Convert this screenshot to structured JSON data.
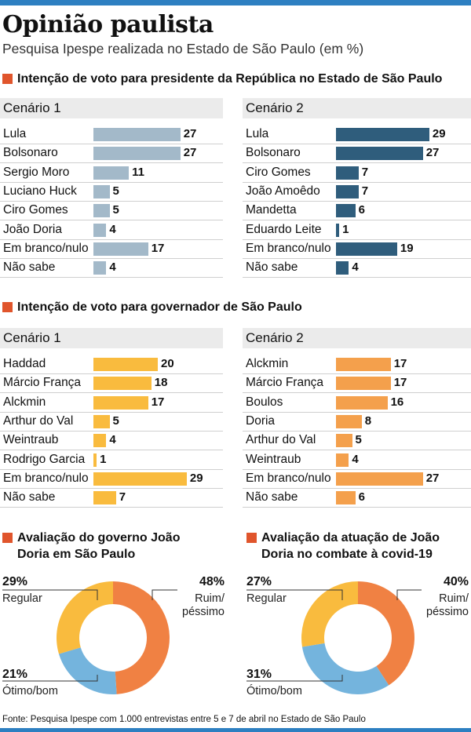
{
  "title": "Opinião paulista",
  "subtitle": "Pesquisa Ipespe realizada no Estado de São Paulo (em %)",
  "source": "Fonte: Pesquisa Ipespe com 1.000 entrevistas entre 5 e 7 de abril no Estado de São Paulo",
  "colors": {
    "accent": "#e0552c",
    "rule": "#2d7fc1",
    "pres1": "#a3b9c9",
    "pres2": "#2f5d7c",
    "gov1": "#f9bb3e",
    "gov2": "#f4a04c",
    "ruim": "#f08143",
    "regular": "#f9bb3e",
    "otimo": "#74b4dd"
  },
  "sections": {
    "presidente": "Intenção de voto para presidente da República no Estado de São Paulo",
    "governador": "Intenção de voto para governador de São Paulo",
    "aval_gov": "Avaliação do governo João Doria em São Paulo",
    "aval_covid": "Avaliação da atuação de João Doria no combate à covid-19"
  },
  "chart_data": [
    {
      "type": "bar",
      "title": "Cenário 1",
      "categories": [
        "Lula",
        "Bolsonaro",
        "Sergio Moro",
        "Luciano Huck",
        "Ciro Gomes",
        "João Doria",
        "Em branco/nulo",
        "Não sabe"
      ],
      "values": [
        27,
        27,
        11,
        5,
        5,
        4,
        17,
        4
      ]
    },
    {
      "type": "bar",
      "title": "Cenário 2",
      "categories": [
        "Lula",
        "Bolsonaro",
        "Ciro Gomes",
        "João Amoêdo",
        "Mandetta",
        "Eduardo Leite",
        "Em branco/nulo",
        "Não sabe"
      ],
      "values": [
        29,
        27,
        7,
        7,
        6,
        1,
        19,
        4
      ]
    },
    {
      "type": "bar",
      "title": "Cenário 1",
      "categories": [
        "Haddad",
        "Márcio França",
        "Alckmin",
        "Arthur do Val",
        "Weintraub",
        "Rodrigo Garcia",
        "Em branco/nulo",
        "Não sabe"
      ],
      "values": [
        20,
        18,
        17,
        5,
        4,
        1,
        29,
        7
      ]
    },
    {
      "type": "bar",
      "title": "Cenário 2",
      "categories": [
        "Alckmin",
        "Márcio França",
        "Boulos",
        "Doria",
        "Arthur do Val",
        "Weintraub",
        "Em branco/nulo",
        "Não sabe"
      ],
      "values": [
        17,
        17,
        16,
        8,
        5,
        4,
        27,
        6
      ]
    },
    {
      "type": "pie",
      "labels": [
        "Ruim/ péssimo",
        "Ótimo/bom",
        "Regular"
      ],
      "values": [
        48,
        21,
        29
      ],
      "display": [
        "48%",
        "21%",
        "29%"
      ]
    },
    {
      "type": "pie",
      "labels": [
        "Ruim/ péssimo",
        "Ótimo/bom",
        "Regular"
      ],
      "values": [
        40,
        31,
        27
      ],
      "display": [
        "40%",
        "31%",
        "27%"
      ]
    }
  ]
}
